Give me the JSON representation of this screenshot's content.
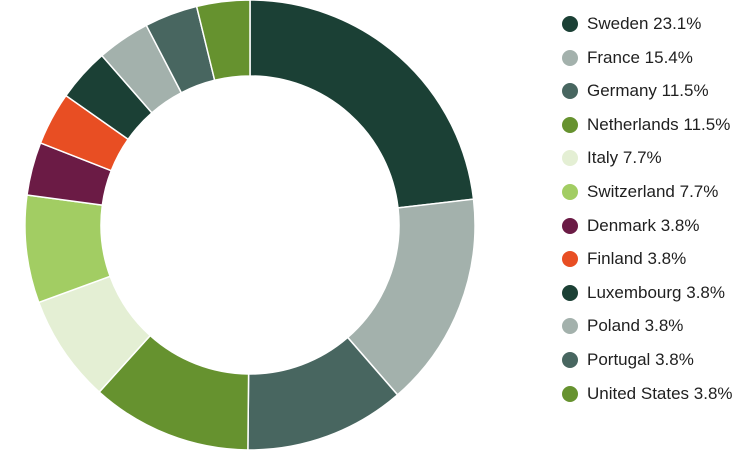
{
  "chart_data": {
    "type": "pie",
    "variant": "donut",
    "title": "",
    "legend": "right",
    "slices": [
      {
        "label": "Sweden",
        "percent_label": "23.1%",
        "value": 23.1,
        "color": "#1b4035"
      },
      {
        "label": "France",
        "percent_label": "15.4%",
        "value": 15.4,
        "color": "#a3b1ac"
      },
      {
        "label": "Germany",
        "percent_label": "11.5%",
        "value": 11.5,
        "color": "#486660"
      },
      {
        "label": "Netherlands",
        "percent_label": "11.5%",
        "value": 11.5,
        "color": "#66922f"
      },
      {
        "label": "Italy",
        "percent_label": "7.7%",
        "value": 7.7,
        "color": "#e4efd4"
      },
      {
        "label": "Switzerland",
        "percent_label": "7.7%",
        "value": 7.7,
        "color": "#a2cd63"
      },
      {
        "label": "Denmark",
        "percent_label": "3.8%",
        "value": 3.8,
        "color": "#6b1b45"
      },
      {
        "label": "Finland",
        "percent_label": "3.8%",
        "value": 3.8,
        "color": "#e84e23"
      },
      {
        "label": "Luxembourg",
        "percent_label": "3.8%",
        "value": 3.8,
        "color": "#1b4035"
      },
      {
        "label": "Poland",
        "percent_label": "3.8%",
        "value": 3.8,
        "color": "#a3b1ac"
      },
      {
        "label": "Portugal",
        "percent_label": "3.8%",
        "value": 3.8,
        "color": "#486660"
      },
      {
        "label": "United States",
        "percent_label": "3.8%",
        "value": 3.8,
        "color": "#66922f"
      }
    ]
  }
}
